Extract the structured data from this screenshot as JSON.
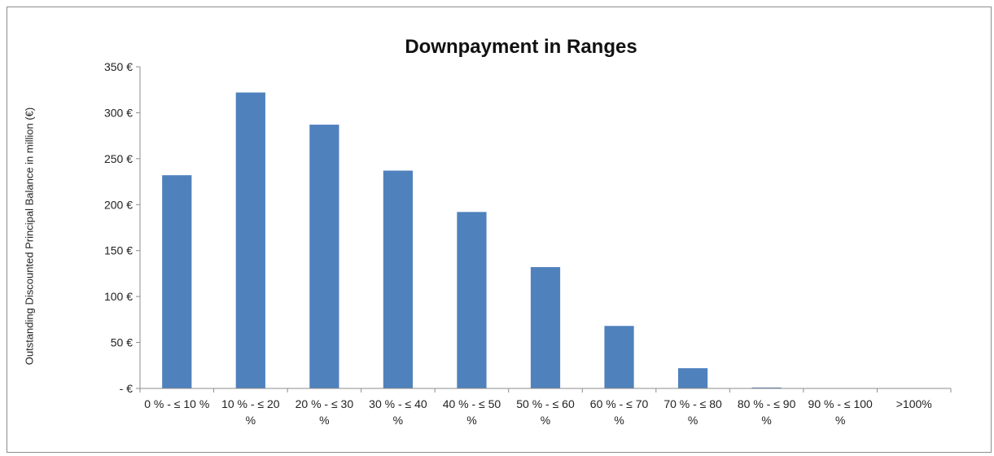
{
  "chart_data": {
    "type": "bar",
    "title": "Downpayment in Ranges",
    "xlabel": "",
    "ylabel": "Outstanding Discounted Principal Balance in million (€)",
    "ylim": [
      0,
      350
    ],
    "yticks": [
      0,
      50,
      100,
      150,
      200,
      250,
      300,
      350
    ],
    "ytick_labels": [
      "- €",
      "50 €",
      "100 €",
      "150 €",
      "200 €",
      "250 €",
      "300 €",
      "350 €"
    ],
    "grid": false,
    "legend": "none",
    "bar_color": "#4f81bd",
    "categories": [
      [
        "0 % - ≤ 10 %"
      ],
      [
        "10 % - ≤ 20",
        "%"
      ],
      [
        "20 % - ≤ 30",
        "%"
      ],
      [
        "30 % - ≤ 40",
        "%"
      ],
      [
        "40 % - ≤ 50",
        "%"
      ],
      [
        "50 % - ≤ 60",
        "%"
      ],
      [
        "60 % - ≤ 70",
        "%"
      ],
      [
        "70 % - ≤ 80",
        "%"
      ],
      [
        "80 % - ≤ 90",
        "%"
      ],
      [
        "90 % - ≤ 100",
        "%"
      ],
      [
        ">100%"
      ]
    ],
    "values": [
      232,
      322,
      287,
      237,
      192,
      132,
      68,
      22,
      1,
      0,
      0
    ]
  }
}
